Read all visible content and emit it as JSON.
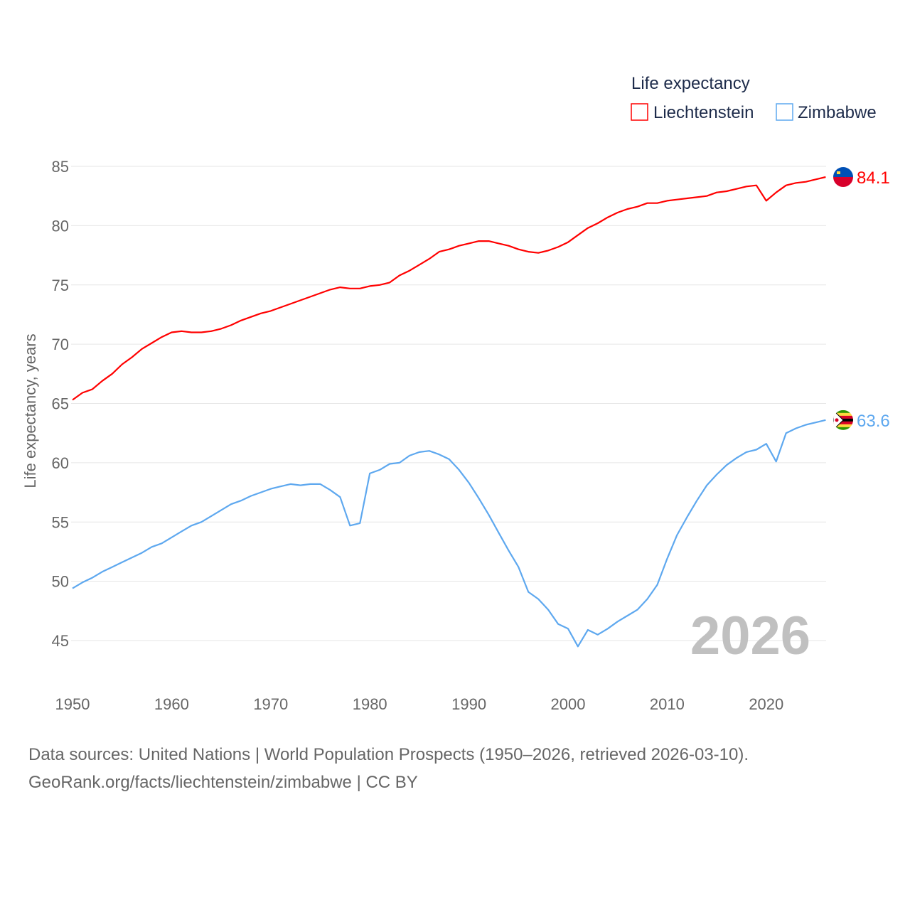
{
  "chart_data": {
    "type": "line",
    "ylabel": "Life expectancy, years",
    "xlabel": "",
    "legend_title": "Life expectancy",
    "legend_position": "top-right",
    "ylim": [
      42,
      86
    ],
    "xlim": [
      1950,
      2026
    ],
    "yticks": [
      45,
      50,
      55,
      60,
      65,
      70,
      75,
      80,
      85
    ],
    "xticks": [
      1950,
      1960,
      1970,
      1980,
      1990,
      2000,
      2010,
      2020
    ],
    "grid": true,
    "watermark_year": "2026",
    "x_start": 1950,
    "series": [
      {
        "name": "Liechtenstein",
        "color": "#ff0000",
        "end_label": "84.1",
        "flag": "liechtenstein-flag",
        "values": [
          65.3,
          65.9,
          66.2,
          66.9,
          67.5,
          68.3,
          68.9,
          69.6,
          70.1,
          70.6,
          71.0,
          71.1,
          71.0,
          71.0,
          71.1,
          71.3,
          71.6,
          72.0,
          72.3,
          72.6,
          72.8,
          73.1,
          73.4,
          73.7,
          74.0,
          74.3,
          74.6,
          74.8,
          74.7,
          74.7,
          74.9,
          75.0,
          75.2,
          75.8,
          76.2,
          76.7,
          77.2,
          77.8,
          78.0,
          78.3,
          78.5,
          78.7,
          78.7,
          78.5,
          78.3,
          78.0,
          77.8,
          77.7,
          77.9,
          78.2,
          78.6,
          79.2,
          79.8,
          80.2,
          80.7,
          81.1,
          81.4,
          81.6,
          81.9,
          81.9,
          82.1,
          82.2,
          82.3,
          82.4,
          82.5,
          82.8,
          82.9,
          83.1,
          83.3,
          83.4,
          82.1,
          82.8,
          83.4,
          83.6,
          83.7,
          83.9,
          84.1
        ]
      },
      {
        "name": "Zimbabwe",
        "color": "#5ea8ef",
        "end_label": "63.6",
        "flag": "zimbabwe-flag",
        "values": [
          49.4,
          49.9,
          50.3,
          50.8,
          51.2,
          51.6,
          52.0,
          52.4,
          52.9,
          53.2,
          53.7,
          54.2,
          54.7,
          55.0,
          55.5,
          56.0,
          56.5,
          56.8,
          57.2,
          57.5,
          57.8,
          58.0,
          58.2,
          58.1,
          58.2,
          58.2,
          57.7,
          57.1,
          54.7,
          54.9,
          59.1,
          59.4,
          59.9,
          60.0,
          60.6,
          60.9,
          61.0,
          60.7,
          60.3,
          59.4,
          58.3,
          57.0,
          55.6,
          54.1,
          52.6,
          51.2,
          49.1,
          48.5,
          47.6,
          46.4,
          46.0,
          44.5,
          45.9,
          45.5,
          46.0,
          46.6,
          47.1,
          47.6,
          48.5,
          49.7,
          51.9,
          53.9,
          55.4,
          56.8,
          58.1,
          59.0,
          59.8,
          60.4,
          60.9,
          61.1,
          61.6,
          60.1,
          62.5,
          62.9,
          63.2,
          63.4,
          63.6
        ]
      }
    ]
  },
  "footer": {
    "source_line": "Data sources: United Nations | World Population Prospects (1950–2026, retrieved 2026-03-10).",
    "credit_line": "GeoRank.org/facts/liechtenstein/zimbabwe | CC BY"
  }
}
